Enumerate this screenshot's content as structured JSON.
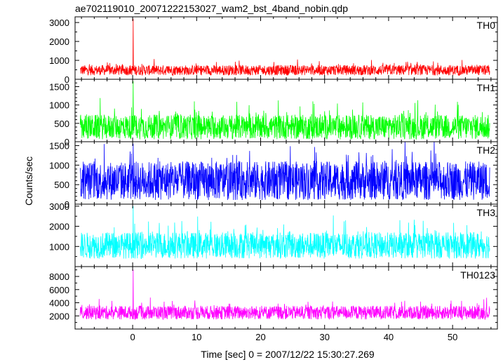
{
  "title": "ae702119010_20071222153027_wam2_bst_4band_nobin.qdp",
  "ylabel": "Counts/sec",
  "xlabel": "Time [sec] 0 = 2007/12/22 15:30:27.269",
  "chart_data": {
    "type": "line",
    "title": "ae702119010_20071222153027_wam2_bst_4band_nobin.qdp",
    "xlabel": "Time [sec] 0 = 2007/12/22 15:30:27.269",
    "ylabel": "Counts/sec",
    "xlim": [
      -9,
      57
    ],
    "xticks": [
      0,
      10,
      20,
      30,
      40,
      50
    ],
    "legend": "none; each panel labelled top-right",
    "panels": [
      {
        "name": "TH0",
        "color": "#ff0000",
        "ylim": [
          0,
          3300
        ],
        "yticks": [
          0,
          1000,
          2000,
          3000
        ],
        "base": 480,
        "noise": 340,
        "peak": 3200,
        "peak_x": 0.1
      },
      {
        "name": "TH1",
        "color": "#00ff00",
        "ylim": [
          0,
          1700
        ],
        "yticks": [
          0,
          500,
          1000,
          1500
        ],
        "base": 400,
        "noise": 420,
        "peak": 1650,
        "peak_x": 0.1
      },
      {
        "name": "TH2",
        "color": "#0000ff",
        "ylim": [
          0,
          1600
        ],
        "yticks": [
          0,
          500,
          1000,
          1500
        ],
        "base": 600,
        "noise": 620,
        "peak": 1550,
        "peak_x": 0.1
      },
      {
        "name": "TH3",
        "color": "#00ffff",
        "ylim": [
          0,
          3100
        ],
        "yticks": [
          1000,
          2000,
          3000
        ],
        "base": 1050,
        "noise": 820,
        "peak": 3000,
        "peak_x": 0.1
      },
      {
        "name": "TH0123",
        "color": "#ff00ff",
        "ylim": [
          0,
          9500
        ],
        "yticks": [
          2000,
          4000,
          6000,
          8000
        ],
        "base": 2500,
        "noise": 1300,
        "peak": 9000,
        "peak_x": 0.1
      }
    ]
  }
}
